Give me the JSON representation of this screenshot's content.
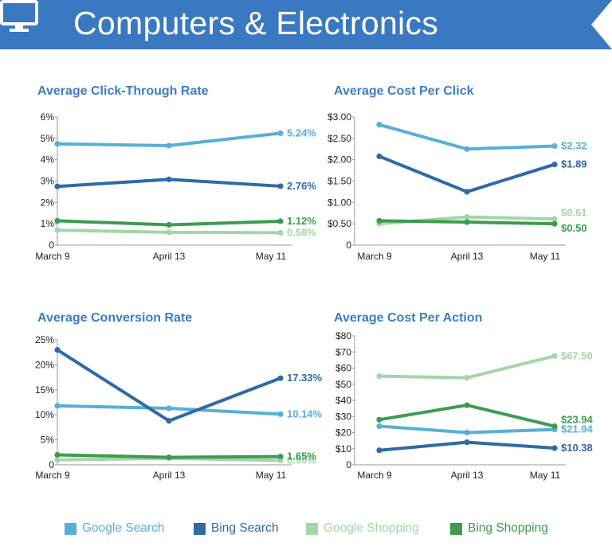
{
  "header": {
    "title": "Computers & Electronics",
    "icon": "monitor-icon",
    "color": "#3a78c2"
  },
  "legend": [
    {
      "name": "Google Search",
      "color": "#56b0d8"
    },
    {
      "name": "Bing Search",
      "color": "#2e6aa6"
    },
    {
      "name": "Google Shopping",
      "color": "#a3d6a7"
    },
    {
      "name": "Bing Shopping",
      "color": "#3d9b52"
    }
  ],
  "chart_data": [
    {
      "type": "line",
      "title": "Average Click-Through Rate",
      "categories": [
        "March 9",
        "April 13",
        "May 11"
      ],
      "ylim": [
        0,
        6
      ],
      "yticks": [
        "0",
        "1%",
        "2%",
        "3%",
        "4%",
        "5%",
        "6%"
      ],
      "series": [
        {
          "name": "Google Search",
          "values": [
            4.74,
            4.66,
            5.24
          ],
          "end_label": "5.24%"
        },
        {
          "name": "Bing Search",
          "values": [
            2.75,
            3.08,
            2.76
          ],
          "end_label": "2.76%"
        },
        {
          "name": "Google Shopping",
          "values": [
            0.7,
            0.6,
            0.58
          ],
          "end_label": "0.58%"
        },
        {
          "name": "Bing Shopping",
          "values": [
            1.14,
            0.95,
            1.12
          ],
          "end_label": "1.12%"
        }
      ]
    },
    {
      "type": "line",
      "title": "Average Cost Per Click",
      "categories": [
        "March 9",
        "April 13",
        "May 11"
      ],
      "ylim": [
        0,
        3
      ],
      "yticks": [
        "0",
        "$0.50",
        "$1.00",
        "$1.50",
        "$2.00",
        "$2.50",
        "$3.00"
      ],
      "series": [
        {
          "name": "Google Search",
          "values": [
            2.82,
            2.25,
            2.32
          ],
          "end_label": "$2.32"
        },
        {
          "name": "Bing Search",
          "values": [
            2.08,
            1.25,
            1.89
          ],
          "end_label": "$1.89"
        },
        {
          "name": "Google Shopping",
          "values": [
            0.5,
            0.66,
            0.61
          ],
          "end_label": "$0.61"
        },
        {
          "name": "Bing Shopping",
          "values": [
            0.57,
            0.54,
            0.5
          ],
          "end_label": "$0.50"
        }
      ]
    },
    {
      "type": "line",
      "title": "Average Conversion Rate",
      "categories": [
        "March 9",
        "April 13",
        "May 11"
      ],
      "ylim": [
        0,
        25
      ],
      "yticks": [
        "0",
        "5%",
        "10%",
        "15%",
        "20%",
        "25%"
      ],
      "series": [
        {
          "name": "Google Search",
          "values": [
            11.8,
            11.3,
            10.14
          ],
          "end_label": "10.14%"
        },
        {
          "name": "Bing Search",
          "values": [
            23.0,
            8.8,
            17.33
          ],
          "end_label": "17.33%"
        },
        {
          "name": "Google Shopping",
          "values": [
            1.0,
            1.3,
            0.9
          ],
          "end_label": "0.90%"
        },
        {
          "name": "Bing Shopping",
          "values": [
            2.0,
            1.5,
            1.65
          ],
          "end_label": "1.65%"
        }
      ]
    },
    {
      "type": "line",
      "title": "Average Cost Per Action",
      "categories": [
        "March 9",
        "April 13",
        "May 11"
      ],
      "ylim": [
        0,
        80
      ],
      "yticks": [
        "0",
        "$10",
        "$20",
        "$30",
        "$40",
        "$50",
        "$60",
        "$70",
        "$80"
      ],
      "series": [
        {
          "name": "Google Search",
          "values": [
            24.0,
            20.0,
            21.94
          ],
          "end_label": "$21.94"
        },
        {
          "name": "Bing Search",
          "values": [
            9.0,
            14.0,
            10.38
          ],
          "end_label": "$10.38"
        },
        {
          "name": "Google Shopping",
          "values": [
            55.0,
            54.0,
            67.5
          ],
          "end_label": "$67.50"
        },
        {
          "name": "Bing Shopping",
          "values": [
            28.0,
            37.0,
            23.94
          ],
          "end_label": "$23.94"
        }
      ]
    }
  ]
}
